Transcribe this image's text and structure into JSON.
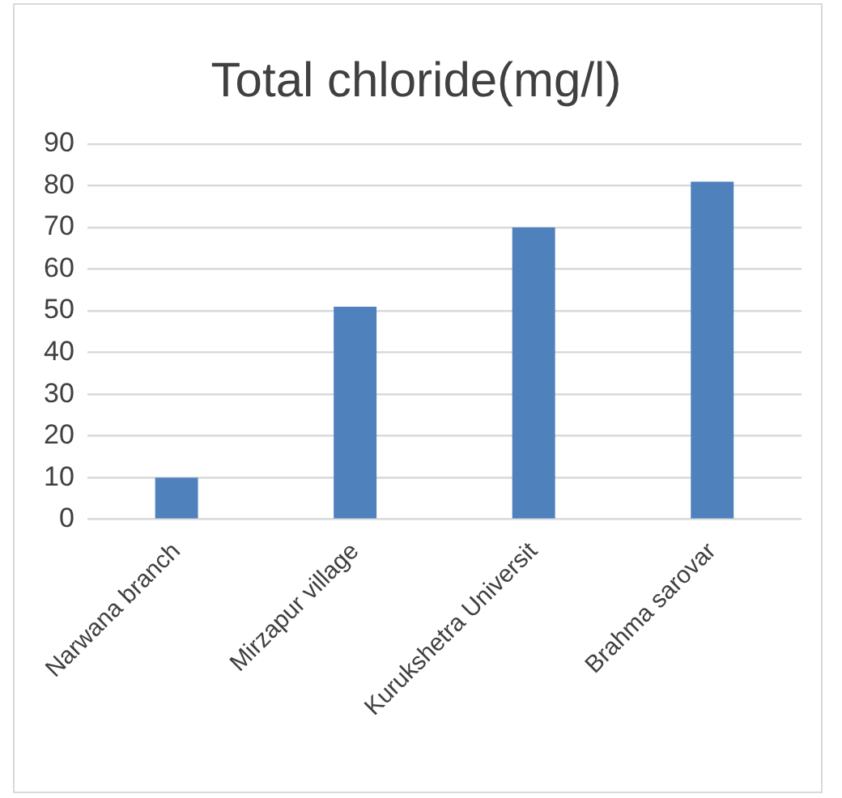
{
  "chart_data": {
    "type": "bar",
    "title": "Total chloride(mg/l)",
    "categories": [
      "Narwana branch",
      "Mirzapur village",
      "Kurukshetra Universit",
      "Brahma sarovar"
    ],
    "values": [
      10,
      51,
      70,
      81
    ],
    "color": "#4f81bd",
    "ylim": [
      0,
      90
    ],
    "yticks": [
      0,
      10,
      20,
      30,
      40,
      50,
      60,
      70,
      80,
      90
    ],
    "grid": "y"
  }
}
